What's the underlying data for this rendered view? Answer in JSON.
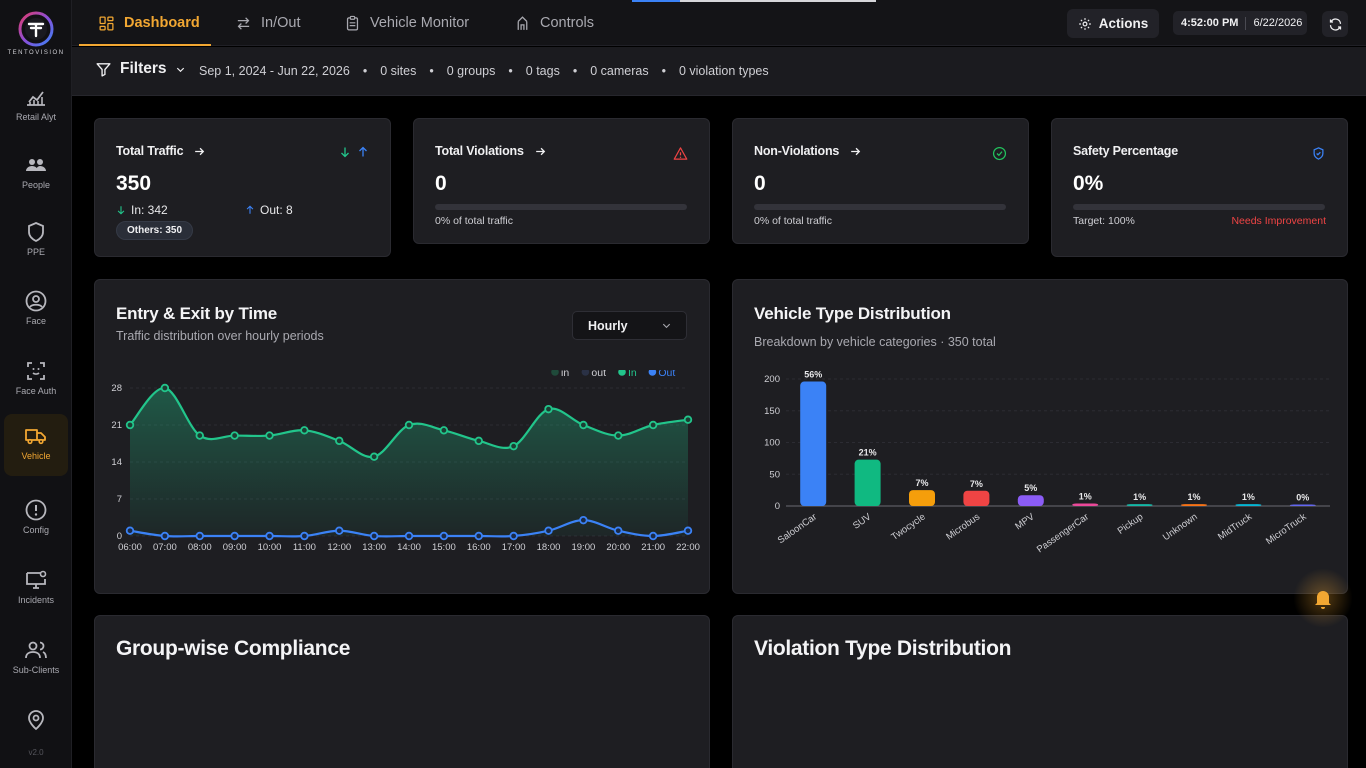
{
  "sidebar": {
    "logo_text": "TENTOVISION",
    "items": [
      {
        "label": "Retail Alyt",
        "icon": "chart-line-icon"
      },
      {
        "label": "People",
        "icon": "people-icon"
      },
      {
        "label": "PPE",
        "icon": "shield-icon"
      },
      {
        "label": "Face",
        "icon": "face-icon"
      },
      {
        "label": "Face Auth",
        "icon": "face-scan-icon"
      },
      {
        "label": "Vehicle",
        "icon": "truck-icon",
        "active": true
      },
      {
        "label": "Config",
        "icon": "alert-circle-icon"
      },
      {
        "label": "Incidents",
        "icon": "monitor-gear-icon"
      },
      {
        "label": "Sub-Clients",
        "icon": "users-icon"
      },
      {
        "label": "",
        "icon": "map-pin-icon"
      }
    ],
    "version": "v2.0"
  },
  "topbar": {
    "tabs": [
      {
        "label": "Dashboard",
        "active": true
      },
      {
        "label": "In/Out"
      },
      {
        "label": "Vehicle Monitor"
      },
      {
        "label": "Controls"
      }
    ],
    "actions_label": "Actions",
    "time": "4:52:00 PM",
    "date": "6/22/2026"
  },
  "filters": {
    "label": "Filters",
    "date_range": "Sep 1, 2024 - Jun 22, 2026",
    "sites": "0 sites",
    "groups": "0 groups",
    "tags": "0 tags",
    "cameras": "0 cameras",
    "violation_types": "0 violation types"
  },
  "cards": {
    "total_traffic": {
      "title": "Total Traffic",
      "value": "350",
      "in": "In: 342",
      "out": "Out: 8",
      "others": "Others: 350"
    },
    "total_violations": {
      "title": "Total Violations",
      "value": "0",
      "sub": "0% of total traffic",
      "percent": 0
    },
    "non_violations": {
      "title": "Non-Violations",
      "value": "0",
      "sub": "0% of total traffic",
      "percent": 0
    },
    "safety": {
      "title": "Safety Percentage",
      "value": "0%",
      "target": "Target: 100%",
      "status": "Needs Improvement",
      "percent": 0
    }
  },
  "colors": {
    "accent": "#f2a732",
    "green": "#22c58b",
    "blue": "#3b82f6",
    "red": "#ef4444"
  },
  "entry_exit": {
    "title": "Entry & Exit by Time",
    "subtitle": "Traffic distribution over hourly periods",
    "period": "Hourly"
  },
  "vehicle_types": {
    "title": "Vehicle Type Distribution",
    "subtitle": "Breakdown by vehicle categories · 350 total"
  },
  "group_compliance": {
    "title": "Group-wise Compliance"
  },
  "violation_types": {
    "title": "Violation Type Distribution"
  },
  "chart_data": [
    {
      "type": "area",
      "title": "Entry & Exit by Time",
      "x": [
        "06:00",
        "07:00",
        "08:00",
        "09:00",
        "10:00",
        "11:00",
        "12:00",
        "13:00",
        "14:00",
        "15:00",
        "16:00",
        "17:00",
        "18:00",
        "19:00",
        "20:00",
        "21:00",
        "22:00"
      ],
      "ylim": [
        0,
        28
      ],
      "yticks": [
        0,
        7,
        14,
        21,
        28
      ],
      "legend": [
        "in",
        "out",
        "In",
        "Out"
      ],
      "legend_position": "top-right",
      "series": [
        {
          "name": "In",
          "color": "#22c58b",
          "values": [
            21,
            28,
            19,
            19,
            19,
            20,
            18,
            15,
            21,
            20,
            18,
            17,
            24,
            21,
            19,
            21,
            22
          ]
        },
        {
          "name": "Out",
          "color": "#3b82f6",
          "values": [
            1,
            0,
            0,
            0,
            0,
            0,
            1,
            0,
            0,
            0,
            0,
            0,
            1,
            3,
            1,
            0,
            1
          ]
        }
      ]
    },
    {
      "type": "bar",
      "title": "Vehicle Type Distribution",
      "categories": [
        "SaloonCar",
        "SUV",
        "Twocycle",
        "Microbus",
        "MPV",
        "PassengerCar",
        "Pickup",
        "Unknown",
        "MidTruck",
        "MicroTruck"
      ],
      "values": [
        196,
        73,
        25,
        24,
        17,
        4,
        3,
        3,
        3,
        1
      ],
      "labels": [
        "56%",
        "21%",
        "7%",
        "7%",
        "5%",
        "1%",
        "1%",
        "1%",
        "1%",
        "0%"
      ],
      "colors": [
        "#3b82f6",
        "#10b981",
        "#f59e0b",
        "#ef4444",
        "#8b5cf6",
        "#ec4899",
        "#14b8a6",
        "#f97316",
        "#06b6d4",
        "#6366f1"
      ],
      "ylim": [
        0,
        200
      ],
      "yticks": [
        0,
        50,
        100,
        150,
        200
      ],
      "grid": true
    }
  ]
}
